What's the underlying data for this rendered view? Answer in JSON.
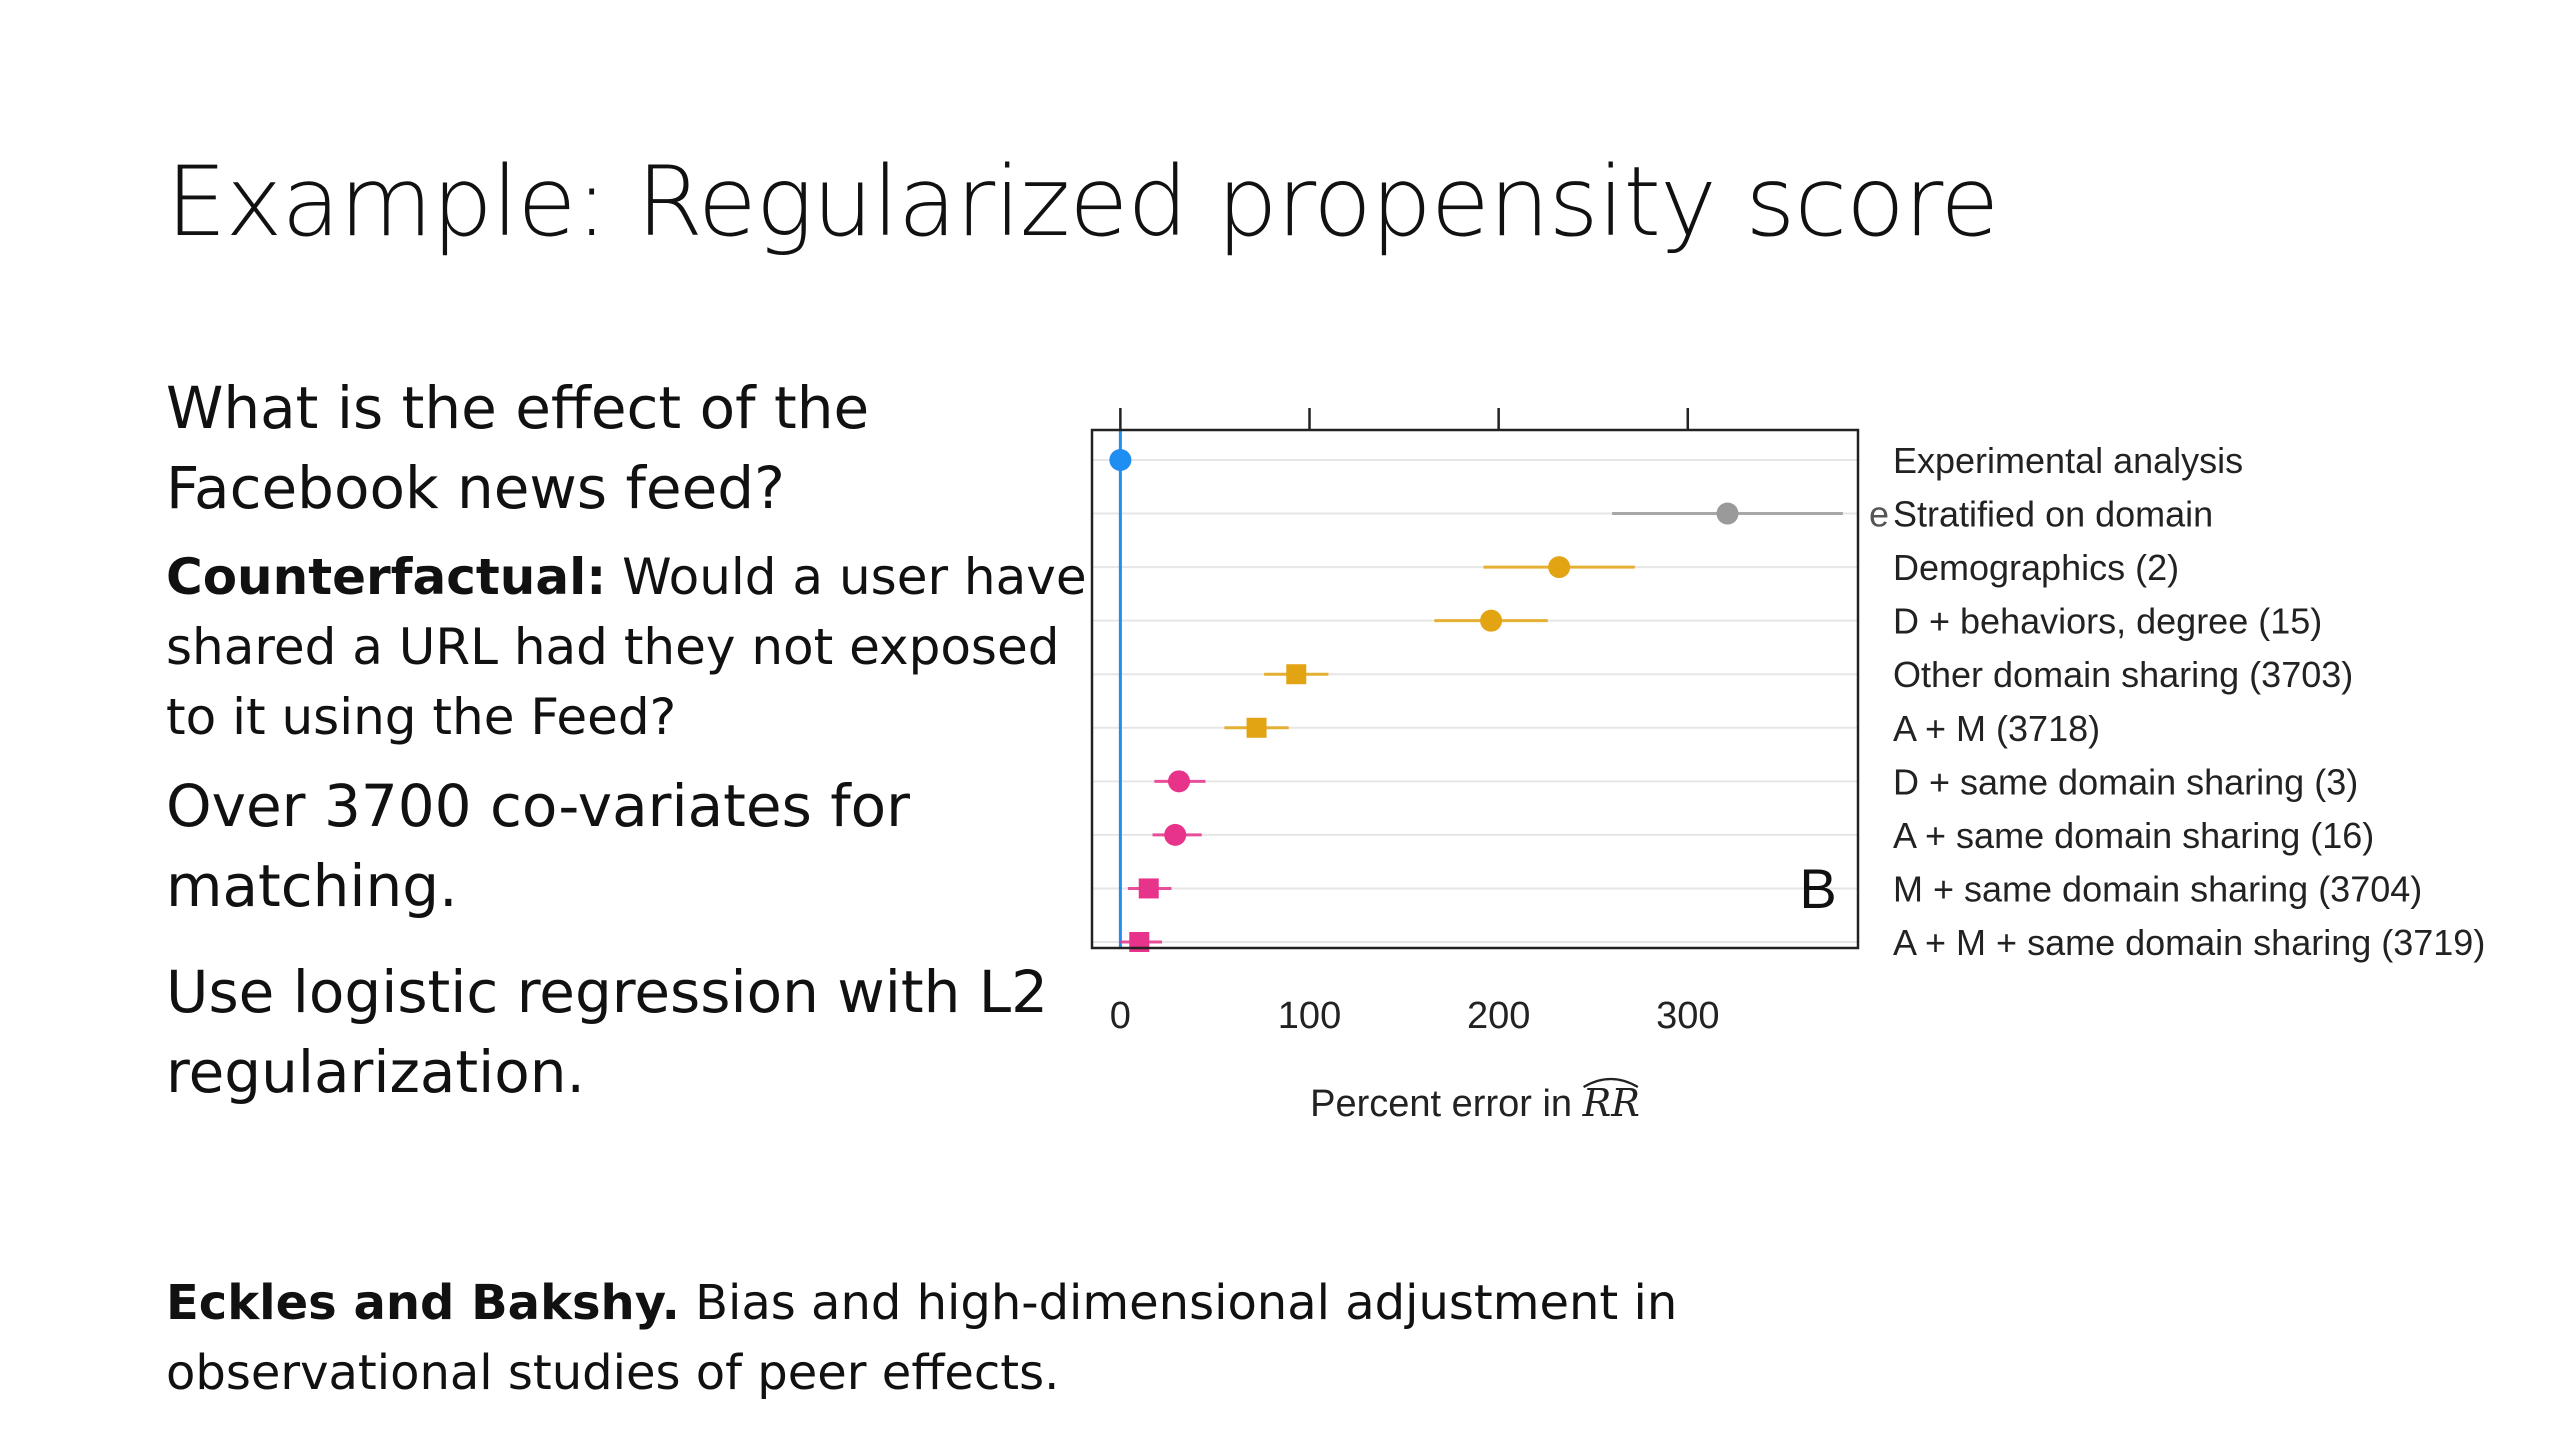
{
  "slide": {
    "title": "Example: Regularized propensity score",
    "bullets": [
      {
        "text": "What is the effect of the Facebook news feed?"
      },
      {
        "bold": "Counterfactual:",
        "text": " Would a user have shared a URL had they not exposed to it using the Feed?"
      },
      {
        "text": "Over 3700 co-variates for matching."
      },
      {
        "text": "Use logistic regression with L2 regularization."
      }
    ],
    "citation": {
      "authors": "Eckles and Bakshy.",
      "text": " Bias and high-dimensional adjustment in observational studies of peer effects."
    }
  },
  "chart_data": {
    "type": "scatter",
    "subtype": "dot-plot-with-error-bars",
    "xlabel": "Percent error in RR",
    "xlabel_prefix": "Percent error in ",
    "xlabel_math": "RR",
    "xticks": [
      0,
      100,
      200,
      300
    ],
    "xlim": [
      -15,
      390
    ],
    "panel_label": "B",
    "legend": "none",
    "grid": "horizontal",
    "vertical_reference_line": 0,
    "stray_label_char": "e",
    "colors": {
      "experimental": "#1f8ef1",
      "stratified": "#9a9a9a",
      "orange": "#e3a413",
      "pink": "#e8338a"
    },
    "rows": [
      {
        "label": "Experimental analysis",
        "value": 0,
        "low": 0,
        "high": 0,
        "shape": "circle",
        "color": "#1f8ef1"
      },
      {
        "label": "Stratified on domain",
        "value": 321,
        "low": 260,
        "high": 382,
        "shape": "circle",
        "color": "#9a9a9a"
      },
      {
        "label": "Demographics (2)",
        "value": 232,
        "low": 192,
        "high": 272,
        "shape": "circle",
        "color": "#e3a413"
      },
      {
        "label": "D + behaviors, degree (15)",
        "value": 196,
        "low": 166,
        "high": 226,
        "shape": "circle",
        "color": "#e3a413"
      },
      {
        "label": "Other domain sharing (3703)",
        "value": 93,
        "low": 76,
        "high": 110,
        "shape": "square",
        "color": "#e3a413"
      },
      {
        "label": "A + M (3718)",
        "value": 72,
        "low": 55,
        "high": 89,
        "shape": "square",
        "color": "#e3a413"
      },
      {
        "label": "D + same domain sharing (3)",
        "value": 31,
        "low": 18,
        "high": 45,
        "shape": "circle",
        "color": "#e8338a"
      },
      {
        "label": "A + same domain sharing (16)",
        "value": 29,
        "low": 17,
        "high": 43,
        "shape": "circle",
        "color": "#e8338a"
      },
      {
        "label": "M + same domain sharing (3704)",
        "value": 15,
        "low": 4,
        "high": 27,
        "shape": "square",
        "color": "#e8338a"
      },
      {
        "label": "A + M + same domain sharing (3719)",
        "value": 10,
        "low": 0,
        "high": 22,
        "shape": "square",
        "color": "#e8338a"
      }
    ]
  }
}
